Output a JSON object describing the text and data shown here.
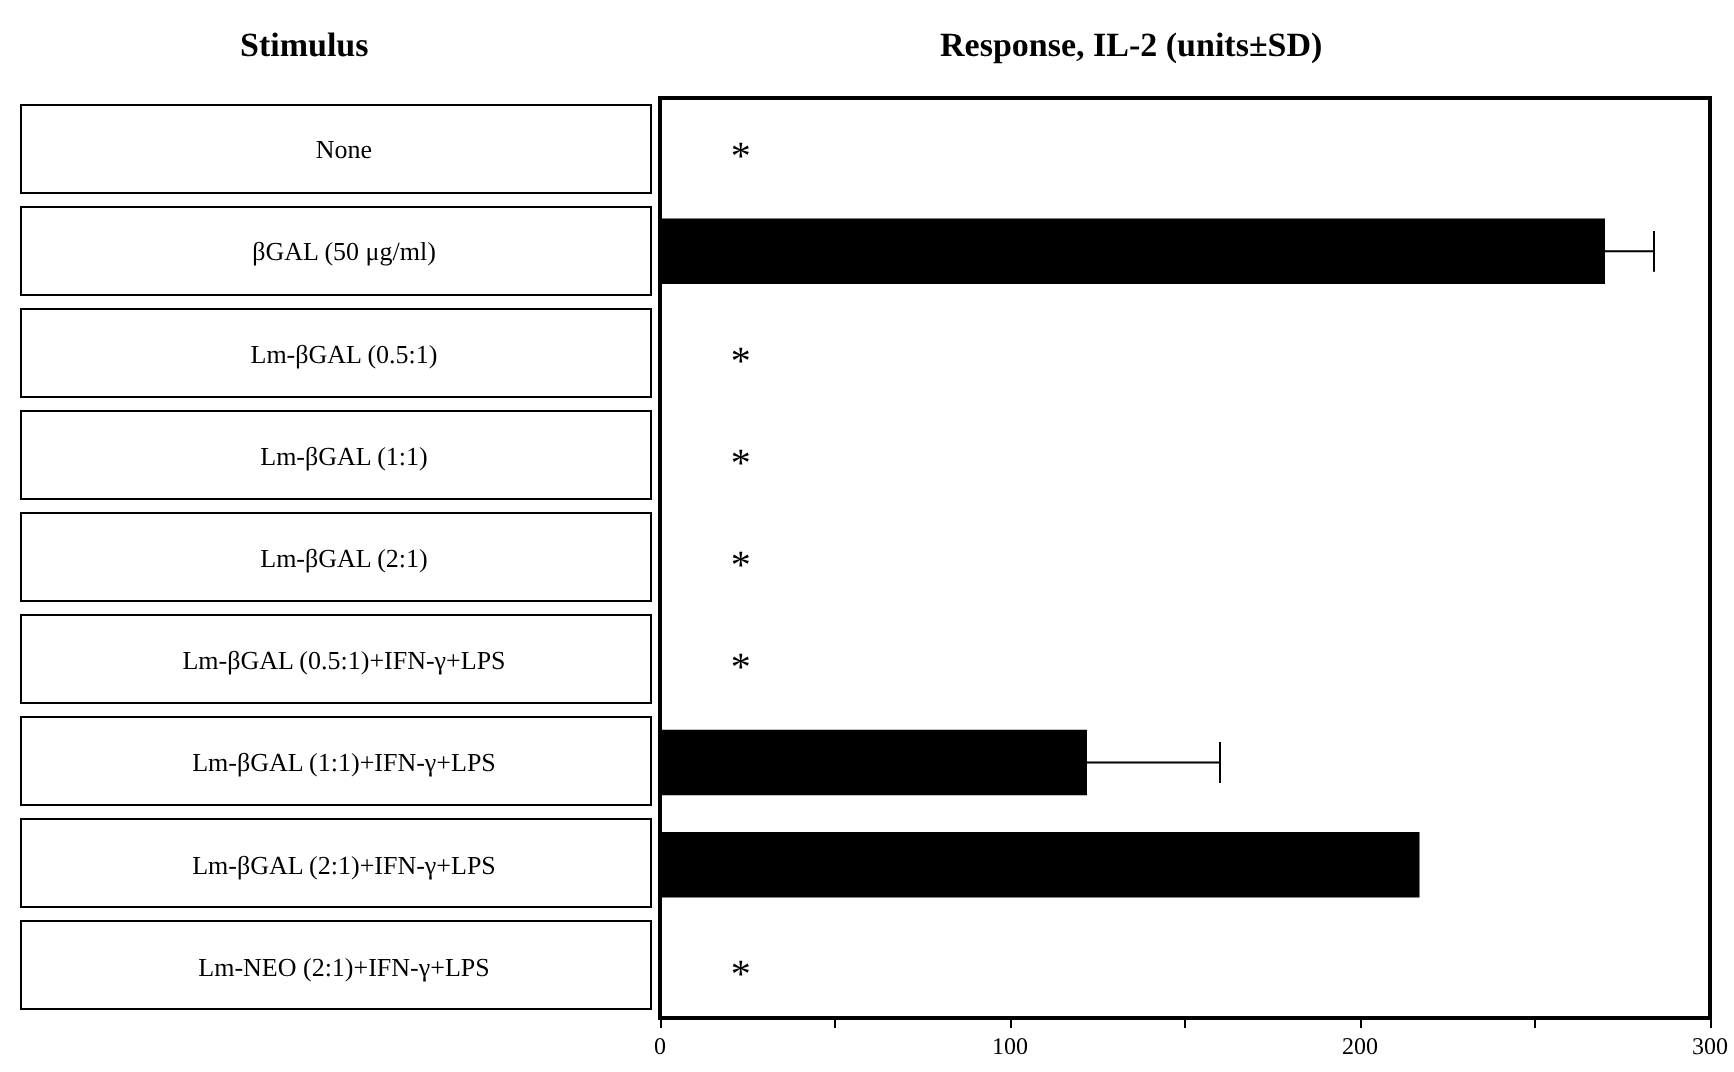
{
  "chart_data": {
    "type": "bar",
    "orientation": "horizontal",
    "xlabel": "Response, IL-2 (units±SD)",
    "ylabel": "Stimulus",
    "categories": [
      "None",
      "βGAL (50 μg/ml)",
      "Lm-βGAL (0.5:1)",
      "Lm-βGAL (1:1)",
      "Lm-βGAL (2:1)",
      "Lm-βGAL (0.5:1)+IFN-γ+LPS",
      "Lm-βGAL (1:1)+IFN-γ+LPS",
      "Lm-βGAL (2:1)+IFN-γ+LPS",
      "Lm-NEO (2:1)+IFN-γ+LPS"
    ],
    "values": [
      null,
      270,
      null,
      null,
      null,
      null,
      122,
      217,
      null
    ],
    "errors": [
      null,
      14,
      null,
      null,
      null,
      null,
      38,
      null,
      null
    ],
    "color": "#000000",
    "xlim": [
      0,
      300
    ],
    "xticks": [
      0,
      {
        "value": 50,
        "label": null
      },
      100,
      {
        "value": 150,
        "label": null
      },
      200,
      {
        "value": 250,
        "label": null
      },
      300
    ],
    "annotations": [
      "*",
      "*",
      "*",
      "*",
      "*",
      "*"
    ],
    "grid": false
  }
}
